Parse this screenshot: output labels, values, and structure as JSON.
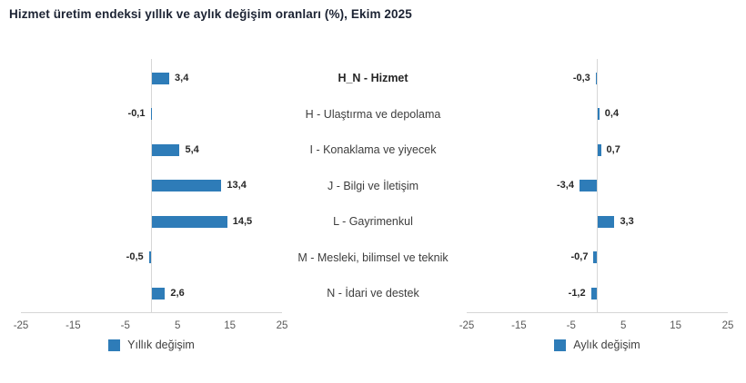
{
  "title": "Hizmet üretim endeksi yıllık ve aylık değişim oranları (%), Ekim 2025",
  "chart_data": {
    "type": "bar",
    "orientation": "horizontal",
    "layout": "butterfly-two-panels",
    "categories": [
      "H_N - Hizmet",
      "H - Ulaştırma ve depolama",
      "I - Konaklama ve yiyecek",
      "J - Bilgi ve İletişim",
      "L - Gayrimenkul",
      "M - Mesleki, bilimsel ve teknik",
      "N - İdari ve destek"
    ],
    "bold_category_index": 0,
    "series": [
      {
        "name": "Yıllık değişim",
        "panel": "left",
        "values": [
          3.4,
          -0.1,
          5.4,
          13.4,
          14.5,
          -0.5,
          2.6
        ],
        "value_labels": [
          "3,4",
          "-0,1",
          "5,4",
          "13,4",
          "14,5",
          "-0,5",
          "2,6"
        ]
      },
      {
        "name": "Aylık değişim",
        "panel": "right",
        "values": [
          -0.3,
          0.4,
          0.7,
          -3.4,
          3.3,
          -0.7,
          -1.2
        ],
        "value_labels": [
          "-0,3",
          "0,4",
          "0,7",
          "-3,4",
          "3,3",
          "-0,7",
          "-1,2"
        ]
      }
    ],
    "xlim": [
      -25,
      25
    ],
    "ticks": [
      -25,
      -15,
      -5,
      5,
      15,
      25
    ],
    "tick_labels": [
      "-25",
      "-15",
      "-5",
      "5",
      "15",
      "25"
    ],
    "grid": "zero-line-only",
    "legend_position": "bottom",
    "colors": {
      "bar": "#2e7cb8",
      "axis_line": "#d6d6d6",
      "tick_label": "#595959",
      "category_label": "#3d3d3d",
      "value_label": "#262626",
      "title": "#1c2333"
    }
  }
}
